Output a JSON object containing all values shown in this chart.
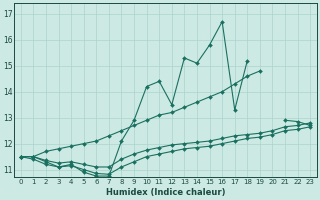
{
  "xlabel": "Humidex (Indice chaleur)",
  "background_color": "#cce9e4",
  "grid_color": "#aad4cc",
  "line_color": "#1a7060",
  "xlim": [
    -0.5,
    23.5
  ],
  "ylim": [
    10.7,
    17.4
  ],
  "xticks": [
    0,
    1,
    2,
    3,
    4,
    5,
    6,
    7,
    8,
    9,
    10,
    11,
    12,
    13,
    14,
    15,
    16,
    17,
    18,
    19,
    20,
    21,
    22,
    23
  ],
  "yticks": [
    11,
    12,
    13,
    14,
    15,
    16,
    17
  ],
  "series": [
    {
      "x": [
        0,
        1,
        2,
        3,
        4,
        5,
        6,
        7,
        8,
        9,
        10,
        11,
        12,
        13,
        14,
        15,
        16,
        17,
        18,
        19,
        20,
        21,
        22,
        23
      ],
      "y": [
        11.5,
        11.5,
        11.3,
        11.1,
        11.2,
        10.9,
        10.75,
        10.75,
        12.1,
        12.9,
        14.2,
        14.4,
        13.5,
        15.3,
        15.1,
        15.8,
        16.7,
        13.3,
        15.2,
        null,
        null,
        12.9,
        12.85,
        12.7
      ]
    },
    {
      "x": [
        0,
        1,
        2,
        3,
        4,
        5,
        6,
        7,
        8,
        9,
        10,
        11,
        12,
        13,
        14,
        15,
        16,
        17,
        18,
        19,
        20,
        21,
        22,
        23
      ],
      "y": [
        11.5,
        11.5,
        11.7,
        11.8,
        11.9,
        12.0,
        12.1,
        12.3,
        12.5,
        12.7,
        12.9,
        13.1,
        13.2,
        13.4,
        13.6,
        13.8,
        14.0,
        14.3,
        14.6,
        14.8,
        null,
        null,
        null,
        null
      ]
    },
    {
      "x": [
        0,
        1,
        2,
        3,
        4,
        5,
        6,
        7,
        8,
        9,
        10,
        11,
        12,
        13,
        14,
        15,
        16,
        17,
        18,
        19,
        20,
        21,
        22,
        23
      ],
      "y": [
        11.5,
        11.4,
        11.2,
        11.1,
        11.15,
        11.0,
        10.85,
        10.82,
        11.1,
        11.3,
        11.5,
        11.6,
        11.7,
        11.8,
        11.85,
        11.9,
        12.0,
        12.1,
        12.2,
        12.25,
        12.35,
        12.5,
        12.55,
        12.65
      ]
    },
    {
      "x": [
        0,
        1,
        2,
        3,
        4,
        5,
        6,
        7,
        8,
        9,
        10,
        11,
        12,
        13,
        14,
        15,
        16,
        17,
        18,
        19,
        20,
        21,
        22,
        23
      ],
      "y": [
        11.5,
        11.5,
        11.35,
        11.25,
        11.3,
        11.2,
        11.1,
        11.1,
        11.4,
        11.6,
        11.75,
        11.85,
        11.95,
        12.0,
        12.05,
        12.1,
        12.2,
        12.3,
        12.35,
        12.4,
        12.5,
        12.65,
        12.7,
        12.8
      ]
    }
  ]
}
